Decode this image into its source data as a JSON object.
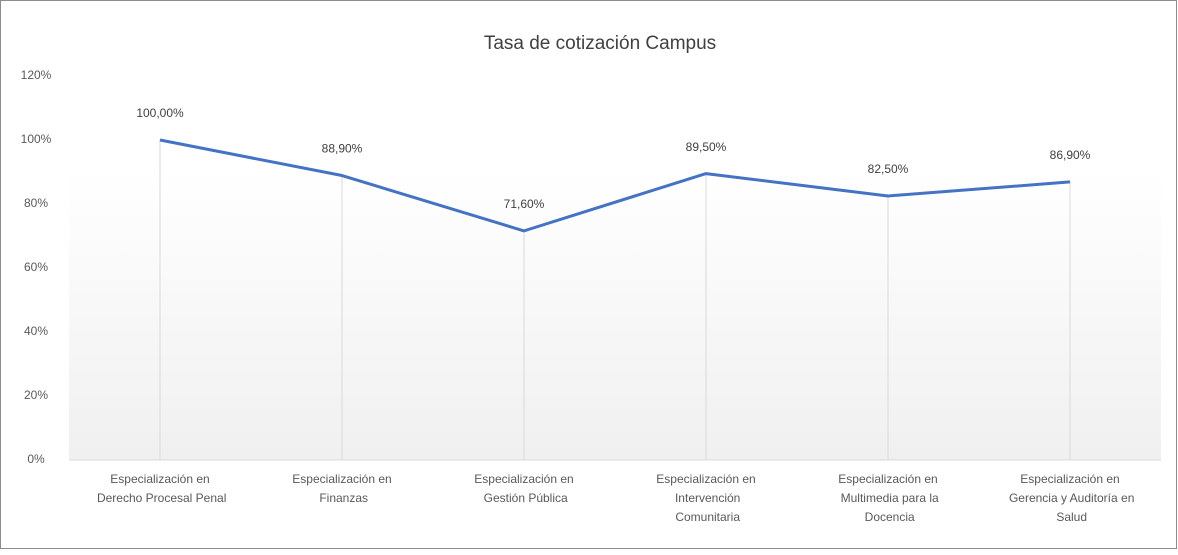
{
  "chart_data": {
    "type": "line",
    "title": "Tasa de cotización Campus",
    "categories": [
      "Especialización en Derecho Procesal Penal",
      "Especialización en Finanzas",
      "Especialización en Gestión Pública",
      "Especialización en Intervención Comunitaria",
      "Especialización en Multimedia para la Docencia",
      "Especialización en Gerencia y Auditoría en Salud"
    ],
    "values": [
      100,
      88.9,
      71.6,
      89.5,
      82.5,
      86.9
    ],
    "value_labels": [
      "100,00%",
      "88,90%",
      "71,60%",
      "89,50%",
      "82,50%",
      "86,90%"
    ],
    "color": "#4472c4",
    "ylim": [
      0,
      120
    ],
    "yticks": [
      {
        "value": 0,
        "label": "0%"
      },
      {
        "value": 20,
        "label": "20%"
      },
      {
        "value": 40,
        "label": "40%"
      },
      {
        "value": 60,
        "label": "60%"
      },
      {
        "value": 80,
        "label": "80%"
      },
      {
        "value": 100,
        "label": "100%"
      },
      {
        "value": 120,
        "label": "120%"
      }
    ]
  }
}
